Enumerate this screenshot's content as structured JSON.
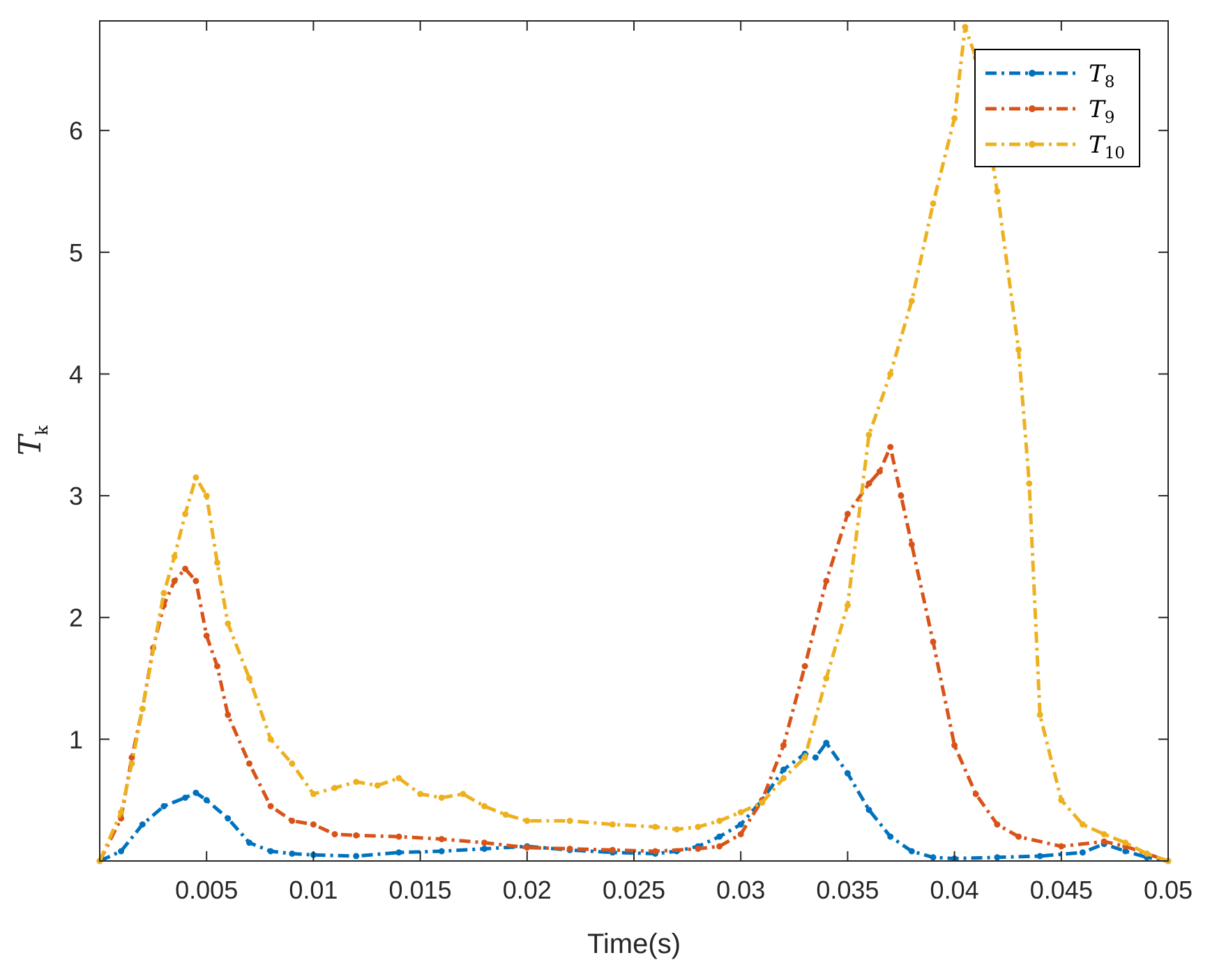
{
  "chart_data": {
    "type": "line",
    "title": "",
    "xlabel": "Time(s)",
    "ylabel_base": "T",
    "ylabel_sub": "k",
    "xlim": [
      0,
      0.05
    ],
    "ylim": [
      0,
      6.9
    ],
    "xticks": [
      0.005,
      0.01,
      0.015,
      0.02,
      0.025,
      0.03,
      0.035,
      0.04,
      0.045,
      0.05
    ],
    "xtick_labels": [
      "0.005",
      "0.01",
      "0.015",
      "0.02",
      "0.025",
      "0.03",
      "0.035",
      "0.04",
      "0.045",
      "0.05"
    ],
    "yticks": [
      1,
      2,
      3,
      4,
      5,
      6
    ],
    "ytick_labels": [
      "1",
      "2",
      "3",
      "4",
      "5",
      "6"
    ],
    "grid": false,
    "legend_position": "top-right",
    "line_style": "dash-dot with point markers",
    "series": [
      {
        "name_base": "T",
        "name_sub": "8",
        "color": "#0072BD",
        "x": [
          0,
          0.001,
          0.002,
          0.003,
          0.004,
          0.0045,
          0.005,
          0.006,
          0.007,
          0.008,
          0.009,
          0.01,
          0.012,
          0.014,
          0.016,
          0.018,
          0.02,
          0.022,
          0.024,
          0.026,
          0.027,
          0.028,
          0.029,
          0.03,
          0.031,
          0.032,
          0.033,
          0.0335,
          0.034,
          0.035,
          0.036,
          0.037,
          0.038,
          0.039,
          0.04,
          0.042,
          0.044,
          0.046,
          0.047,
          0.048,
          0.049,
          0.05
        ],
        "y": [
          0,
          0.08,
          0.3,
          0.45,
          0.52,
          0.56,
          0.5,
          0.35,
          0.15,
          0.08,
          0.06,
          0.05,
          0.04,
          0.07,
          0.08,
          0.1,
          0.12,
          0.09,
          0.07,
          0.06,
          0.08,
          0.12,
          0.2,
          0.3,
          0.5,
          0.75,
          0.88,
          0.85,
          0.97,
          0.72,
          0.42,
          0.2,
          0.08,
          0.03,
          0.02,
          0.03,
          0.04,
          0.07,
          0.14,
          0.08,
          0.03,
          0
        ]
      },
      {
        "name_base": "T",
        "name_sub": "9",
        "color": "#D95319",
        "x": [
          0,
          0.001,
          0.0015,
          0.002,
          0.0025,
          0.003,
          0.0035,
          0.004,
          0.0045,
          0.005,
          0.0055,
          0.006,
          0.007,
          0.008,
          0.009,
          0.01,
          0.011,
          0.012,
          0.014,
          0.016,
          0.018,
          0.02,
          0.022,
          0.024,
          0.026,
          0.028,
          0.029,
          0.03,
          0.031,
          0.032,
          0.033,
          0.034,
          0.035,
          0.036,
          0.0365,
          0.037,
          0.0375,
          0.038,
          0.039,
          0.04,
          0.041,
          0.042,
          0.043,
          0.045,
          0.047,
          0.048,
          0.049,
          0.05
        ],
        "y": [
          0,
          0.35,
          0.85,
          1.25,
          1.75,
          2.1,
          2.3,
          2.4,
          2.3,
          1.85,
          1.6,
          1.2,
          0.8,
          0.45,
          0.33,
          0.3,
          0.22,
          0.21,
          0.2,
          0.18,
          0.15,
          0.11,
          0.1,
          0.09,
          0.08,
          0.1,
          0.12,
          0.22,
          0.5,
          0.95,
          1.6,
          2.3,
          2.85,
          3.1,
          3.2,
          3.4,
          3.0,
          2.6,
          1.8,
          0.95,
          0.55,
          0.3,
          0.2,
          0.12,
          0.16,
          0.12,
          0.06,
          0
        ]
      },
      {
        "name_base": "T",
        "name_sub": "10",
        "color": "#EDB120",
        "x": [
          0,
          0.001,
          0.0015,
          0.002,
          0.003,
          0.0035,
          0.004,
          0.0045,
          0.005,
          0.0055,
          0.006,
          0.007,
          0.008,
          0.009,
          0.01,
          0.011,
          0.012,
          0.013,
          0.014,
          0.015,
          0.016,
          0.017,
          0.018,
          0.019,
          0.02,
          0.022,
          0.024,
          0.026,
          0.027,
          0.028,
          0.029,
          0.03,
          0.031,
          0.032,
          0.033,
          0.034,
          0.035,
          0.036,
          0.037,
          0.038,
          0.039,
          0.04,
          0.0405,
          0.041,
          0.042,
          0.043,
          0.0435,
          0.044,
          0.045,
          0.046,
          0.047,
          0.048,
          0.049,
          0.05
        ],
        "y": [
          0,
          0.4,
          0.8,
          1.25,
          2.2,
          2.5,
          2.85,
          3.15,
          3.0,
          2.45,
          1.95,
          1.5,
          1.0,
          0.8,
          0.55,
          0.6,
          0.65,
          0.62,
          0.68,
          0.55,
          0.52,
          0.55,
          0.45,
          0.38,
          0.33,
          0.33,
          0.3,
          0.28,
          0.26,
          0.28,
          0.33,
          0.4,
          0.48,
          0.68,
          0.85,
          1.5,
          2.1,
          3.5,
          4.0,
          4.6,
          5.4,
          6.1,
          6.85,
          6.6,
          5.5,
          4.2,
          3.1,
          1.2,
          0.5,
          0.3,
          0.22,
          0.15,
          0.06,
          0
        ]
      }
    ]
  }
}
